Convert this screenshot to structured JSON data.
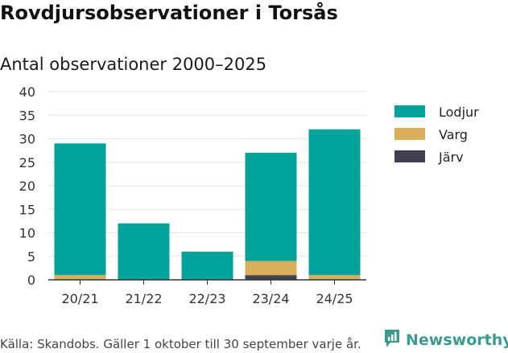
{
  "title": "Rovdjursobservationer i Torsås",
  "subtitle": "Antal observationer 2000–2025",
  "footer": "Källa: Skandobs. Gäller 1 oktober till 30 september varje år.",
  "brand": "Newsworthy",
  "chart_data": {
    "type": "bar",
    "stacked": true,
    "categories": [
      "20/21",
      "21/22",
      "22/23",
      "23/24",
      "24/25"
    ],
    "series": [
      {
        "name": "Järv",
        "color": "#423f4f",
        "values": [
          0,
          0,
          0,
          1,
          0
        ]
      },
      {
        "name": "Varg",
        "color": "#d9ae5a",
        "values": [
          1,
          0,
          0,
          3,
          1
        ]
      },
      {
        "name": "Lodjur",
        "color": "#00a39a",
        "values": [
          28,
          12,
          6,
          23,
          31
        ]
      }
    ],
    "legend_order": [
      "Lodjur",
      "Varg",
      "Järv"
    ],
    "ylim": [
      0,
      40
    ],
    "yticks": [
      0,
      5,
      10,
      15,
      20,
      25,
      30,
      35,
      40
    ],
    "grid": true,
    "legend": "right"
  }
}
